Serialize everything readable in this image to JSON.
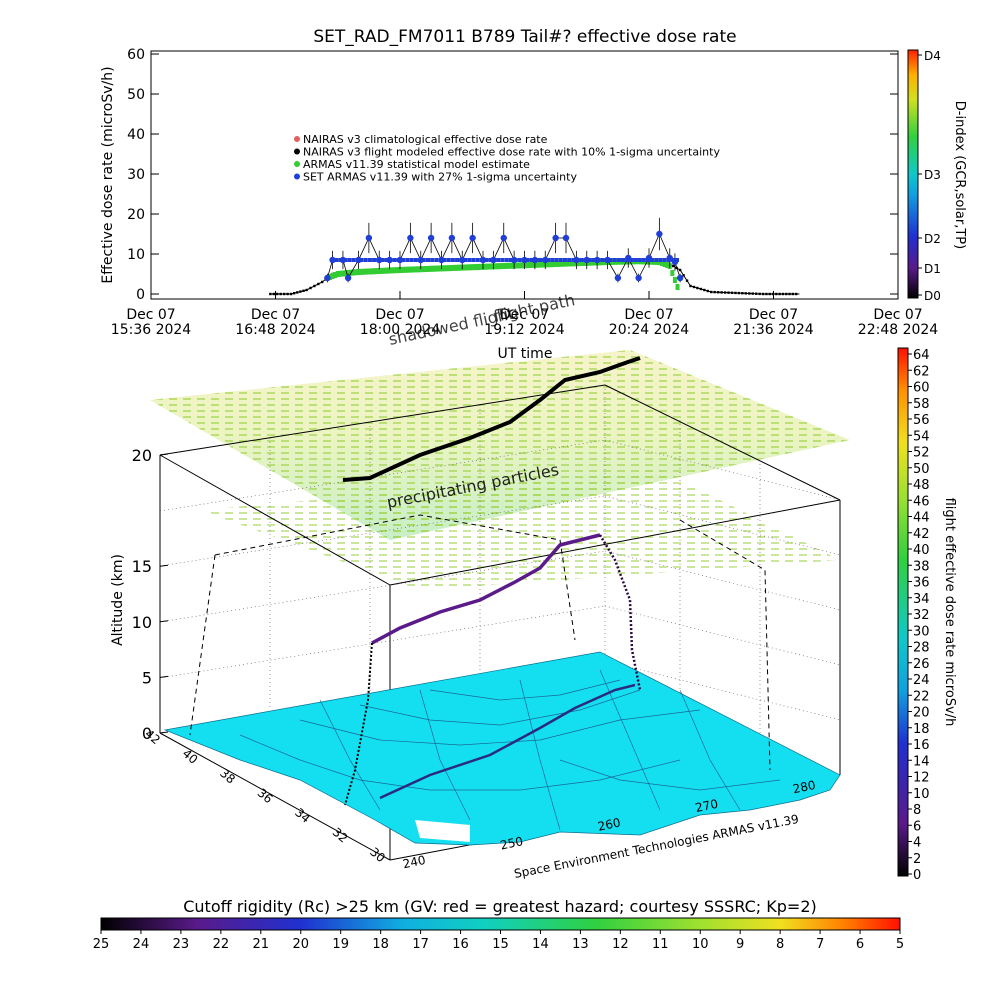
{
  "chart_data": [
    {
      "type": "scatter",
      "title": "SET_RAD_FM7011   B789 Tail#? effective dose rate",
      "ylabel": "Effective dose rate (microSv/h)",
      "xlabel": "UT time",
      "ylim": [
        0,
        60
      ],
      "yticks": [
        "0",
        "10",
        "20",
        "30",
        "40",
        "50",
        "60"
      ],
      "xticks": [
        {
          "line1": "Dec 07",
          "line2": "15:36 2024"
        },
        {
          "line1": "Dec 07",
          "line2": "16:48 2024"
        },
        {
          "line1": "Dec 07",
          "line2": "18:00 2024"
        },
        {
          "line1": "Dec 07",
          "line2": "19:12 2024"
        },
        {
          "line1": "Dec 07",
          "line2": "20:24 2024"
        },
        {
          "line1": "Dec 07",
          "line2": "21:36 2024"
        },
        {
          "line1": "Dec 07",
          "line2": "22:48 2024"
        }
      ],
      "legend_position": "upper-left",
      "legend": [
        {
          "label": "NAIRAS v3 climatological effective dose rate",
          "color": "#e06060"
        },
        {
          "label": "NAIRAS v3 flight modeled effective dose rate with 10% 1-sigma uncertainty",
          "color": "#000000"
        },
        {
          "label": "ARMAS v11.39 statistical model estimate",
          "color": "#33cc33"
        },
        {
          "label": "SET ARMAS v11.39 with 27% 1-sigma uncertainty",
          "color": "#1f3fd6"
        }
      ],
      "series": [
        {
          "name": "NAIRAS v3 flight modeled effective dose rate with 10% 1-sigma uncertainty",
          "x_hours": [
            16.75,
            16.95,
            17.1,
            17.25,
            17.35,
            17.5,
            17.75,
            18.0,
            18.5,
            19.0,
            19.5,
            20.0,
            20.3,
            20.5,
            20.6,
            20.7,
            20.8,
            21.0,
            21.5,
            21.85
          ],
          "y": [
            0,
            0,
            1,
            3,
            5,
            5.5,
            6,
            6,
            6.5,
            7,
            7.5,
            8,
            8,
            8,
            7.5,
            6,
            2,
            0.5,
            0,
            0
          ]
        },
        {
          "name": "ARMAS v11.39 statistical model estimate",
          "x_hours": [
            17.3,
            17.4,
            17.6,
            18.0,
            18.5,
            19.0,
            19.5,
            20.0,
            20.3,
            20.5,
            20.6,
            20.7
          ],
          "y": [
            4,
            5,
            5.5,
            6,
            6.5,
            7,
            7.5,
            8,
            8.2,
            8,
            7,
            0
          ]
        },
        {
          "name": "SET ARMAS v11.39 with 27% 1-sigma uncertainty",
          "x_hours": [
            17.3,
            17.35,
            17.45,
            17.5,
            17.6,
            17.7,
            17.8,
            17.9,
            18.0,
            18.1,
            18.2,
            18.3,
            18.4,
            18.5,
            18.6,
            18.7,
            18.8,
            18.9,
            19.0,
            19.1,
            19.2,
            19.3,
            19.4,
            19.5,
            19.6,
            19.7,
            19.8,
            19.9,
            20.0,
            20.1,
            20.2,
            20.3,
            20.4,
            20.5,
            20.6,
            20.65,
            20.7
          ],
          "y": [
            4,
            8.5,
            8.5,
            4,
            8.5,
            14,
            8.5,
            8.5,
            8.5,
            14,
            8.5,
            14,
            8.5,
            14,
            8.5,
            14,
            8.5,
            8.5,
            14,
            8.5,
            8.5,
            8.5,
            8.5,
            14,
            14,
            8.5,
            8.5,
            8.5,
            8.5,
            4,
            9,
            4,
            9,
            15,
            9,
            8,
            4
          ]
        }
      ],
      "colorbar": {
        "label": "D-index (GCR,solar,TP)",
        "ticks": [
          "D0",
          "D1",
          "D2",
          "D3",
          "D4"
        ]
      }
    },
    {
      "type": "scatter",
      "kind": "3d-flight-path",
      "zlabel": "Altitude (km)",
      "zticks": [
        "0",
        "5",
        "10",
        "15",
        "20"
      ],
      "lat_ticks": [
        "42",
        "40",
        "38",
        "36",
        "34",
        "32",
        "30"
      ],
      "lon_ticks": [
        "240",
        "250",
        "260",
        "270",
        "280"
      ],
      "annotations": [
        "flight path",
        "shadowed flight",
        "precipitating particles",
        "Space Environment Technologies ARMAS v11.39"
      ],
      "colorbar": {
        "label": "flight effective dose rate microSv/h",
        "ticks": [
          "0",
          "2",
          "4",
          "6",
          "8",
          "10",
          "12",
          "14",
          "16",
          "18",
          "20",
          "22",
          "24",
          "26",
          "28",
          "30",
          "32",
          "34",
          "36",
          "38",
          "40",
          "42",
          "44",
          "46",
          "48",
          "50",
          "52",
          "54",
          "56",
          "58",
          "60",
          "62",
          "64"
        ]
      },
      "bottom_colorbar": {
        "label": "Cutoff rigidity (Rc) >25 km (GV: red = greatest hazard; courtesy SSSRC; Kp=2)",
        "ticks": [
          "25",
          "24",
          "23",
          "22",
          "21",
          "20",
          "19",
          "18",
          "17",
          "16",
          "15",
          "14",
          "13",
          "12",
          "11",
          "10",
          "9",
          "8",
          "7",
          "6",
          "5"
        ]
      }
    }
  ]
}
